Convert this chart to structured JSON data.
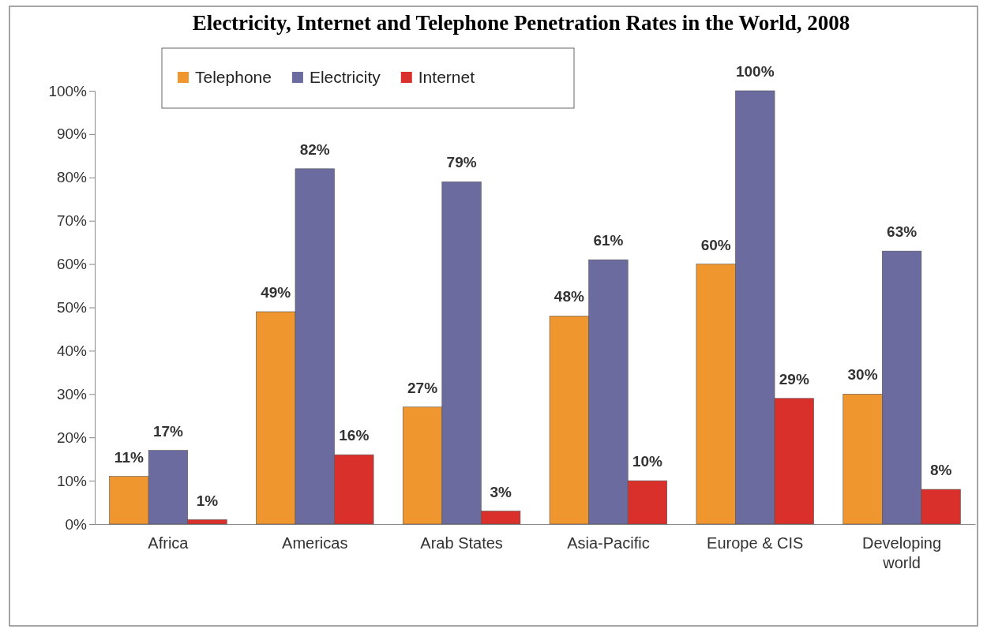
{
  "chart_data": {
    "type": "bar",
    "title": "Electricity, Internet and Telephone Penetration Rates in the World, 2008",
    "categories": [
      "Africa",
      "Americas",
      "Arab States",
      "Asia-Pacific",
      "Europe & CIS",
      "Developing world"
    ],
    "series": [
      {
        "name": "Telephone",
        "color": "#f0962e",
        "values": [
          11,
          49,
          27,
          48,
          60,
          30
        ],
        "value_labels": [
          "11%",
          "49%",
          "27%",
          "48%",
          "60%",
          "30%"
        ]
      },
      {
        "name": "Electricity",
        "color": "#6b6b9f",
        "values": [
          17,
          82,
          79,
          61,
          100,
          63
        ],
        "value_labels": [
          "17%",
          "82%",
          "79%",
          "61%",
          "100%",
          "63%"
        ]
      },
      {
        "name": "Internet",
        "color": "#d9302c",
        "values": [
          1,
          16,
          3,
          10,
          29,
          8
        ],
        "value_labels": [
          "1%",
          "16%",
          "3%",
          "10%",
          "29%",
          "8%"
        ]
      }
    ],
    "ylim": [
      0,
      100
    ],
    "yticks": [
      {
        "value": 0,
        "label": "0%"
      },
      {
        "value": 10,
        "label": "10%"
      },
      {
        "value": 20,
        "label": "20%"
      },
      {
        "value": 30,
        "label": "30%"
      },
      {
        "value": 40,
        "label": "40%"
      },
      {
        "value": 50,
        "label": "50%"
      },
      {
        "value": 60,
        "label": "60%"
      },
      {
        "value": 70,
        "label": "70%"
      },
      {
        "value": 80,
        "label": "80%"
      },
      {
        "value": 90,
        "label": "90%"
      },
      {
        "value": 100,
        "label": "100%"
      }
    ],
    "legend": "top",
    "grid": false
  }
}
